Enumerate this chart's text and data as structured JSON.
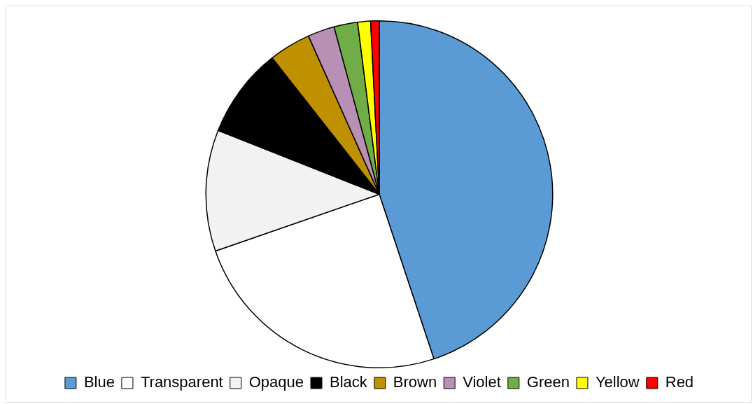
{
  "chart_data": {
    "type": "pie",
    "categories": [
      "Blue",
      "Transparent",
      "Opaque",
      "Black",
      "Brown",
      "Violet",
      "Green",
      "Yellow",
      "Red"
    ],
    "values": [
      44.9,
      24.8,
      11.3,
      8.4,
      3.9,
      2.5,
      2.2,
      1.2,
      0.8
    ],
    "colors": [
      "#5b9bd5",
      "#ffffff",
      "#f2f2f2",
      "#000000",
      "#bf9000",
      "#b88fb5",
      "#70ad47",
      "#ffff00",
      "#ff0000"
    ],
    "legend": "bottom"
  }
}
